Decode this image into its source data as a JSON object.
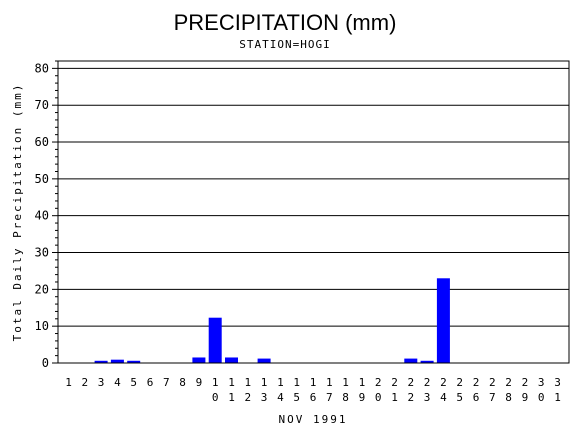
{
  "chart_data": {
    "type": "bar",
    "title": "PRECIPITATION (mm)",
    "subtitle": "STATION=HOGI",
    "xlabel": "NOV 1991",
    "ylabel": "Total Daily Precipitation (mm)",
    "ylim": [
      0,
      82
    ],
    "yticks": [
      0,
      10,
      20,
      30,
      40,
      50,
      60,
      70,
      80
    ],
    "grid": true,
    "bar_color": "#0000ff",
    "categories": [
      "1",
      "2",
      "3",
      "4",
      "5",
      "6",
      "7",
      "8",
      "9",
      "10",
      "11",
      "12",
      "13",
      "14",
      "15",
      "16",
      "17",
      "18",
      "19",
      "20",
      "21",
      "22",
      "23",
      "24",
      "25",
      "26",
      "27",
      "28",
      "29",
      "30",
      "31"
    ],
    "values": [
      0,
      0,
      0.6,
      0.9,
      0.6,
      0,
      0,
      0,
      1.5,
      12.3,
      1.5,
      0,
      1.2,
      0,
      0,
      0,
      0,
      0,
      0,
      0,
      0,
      1.2,
      0.6,
      23.0,
      0,
      0,
      0,
      0,
      0,
      0,
      0
    ]
  }
}
